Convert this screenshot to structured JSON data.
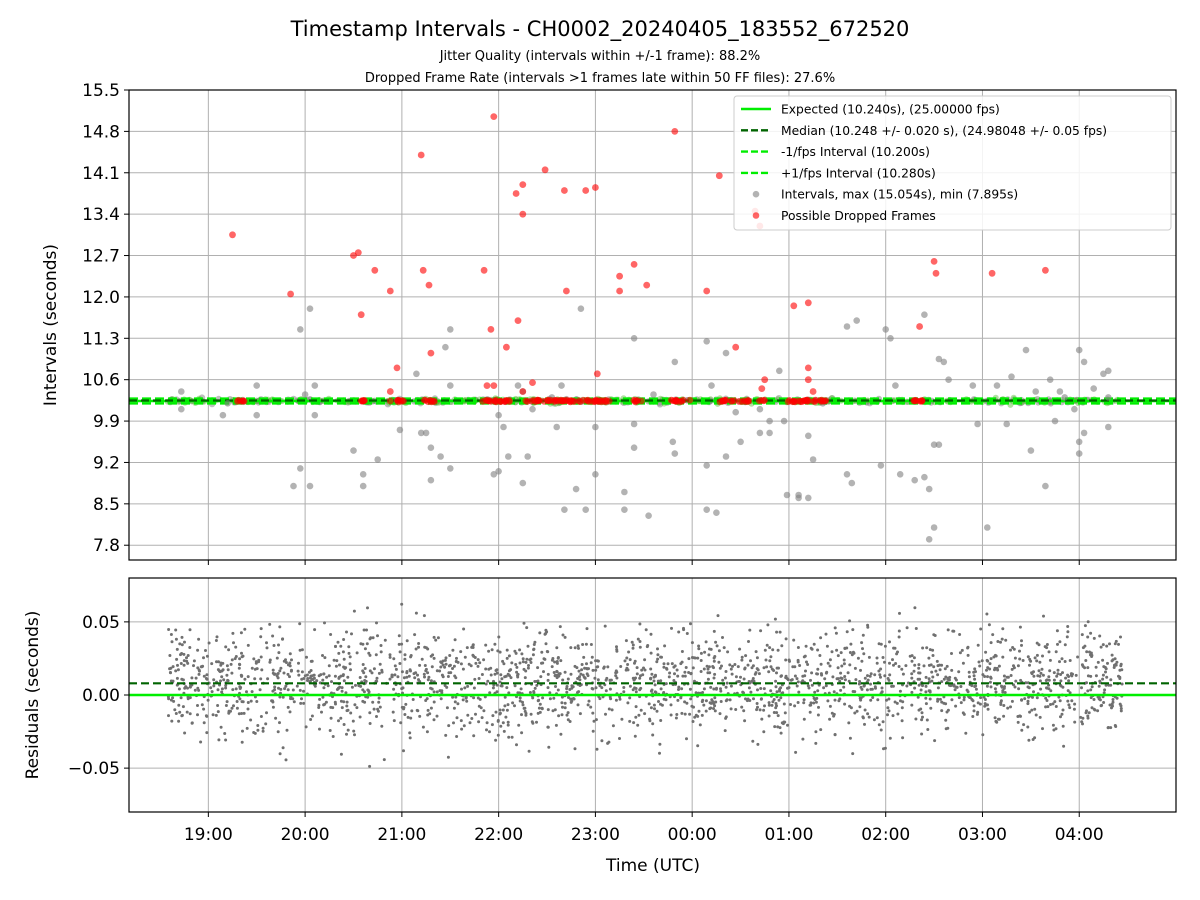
{
  "figure": {
    "title": "Timestamp Intervals - CH0002_20240405_183552_672520",
    "subtitle1": "Jitter Quality (intervals within +/-1 frame): 88.2%",
    "subtitle2": "Dropped Frame Rate (intervals >1 frames late within 50 FF files): 27.6%"
  },
  "chart_data": [
    {
      "type": "scatter",
      "name": "intervals",
      "ylabel": "Intervals (seconds)",
      "ylim": [
        7.55,
        15.5
      ],
      "yticks": [
        7.8,
        8.5,
        9.2,
        9.9,
        10.6,
        11.3,
        12.0,
        12.7,
        13.4,
        14.1,
        14.8,
        15.5
      ],
      "ytick_labels": [
        "7.8",
        "8.5",
        "9.2",
        "9.9",
        "10.6",
        "11.3",
        "12.0",
        "12.7",
        "13.4",
        "14.1",
        "14.8",
        "15.5"
      ],
      "x_unit": "hours since 18:00 UTC",
      "xlim": [
        0.18,
        11.0
      ],
      "grid": true,
      "legend_position": "upper-right",
      "colors": {
        "expected": "#00ee00",
        "median": "#006400",
        "interval": "#00ee00",
        "gray": "#808080",
        "red": "#ff0000"
      },
      "lines": {
        "expected": 10.24,
        "median": 10.248,
        "minus_fps": 10.2,
        "plus_fps": 10.28
      },
      "legend": [
        {
          "label": "Expected (10.240s), (25.00000 fps)",
          "style": "solid",
          "color": "#00ee00"
        },
        {
          "label": "Median (10.248 +/- 0.020 s), (24.98048 +/- 0.05 fps)",
          "style": "dashed",
          "color": "#006400"
        },
        {
          "label": "-1/fps Interval (10.200s)",
          "style": "dashed",
          "color": "#00ee00"
        },
        {
          "label": "+1/fps Interval (10.280s)",
          "style": "dashed",
          "color": "#00ee00"
        },
        {
          "label": "Intervals, max (15.054s), min (7.895s)",
          "style": "marker",
          "color": "#808080"
        },
        {
          "label": "Possible Dropped Frames",
          "style": "marker",
          "color": "#ff0000"
        }
      ],
      "band_x_range": [
        0.58,
        10.45
      ],
      "band_center": 10.24,
      "dropped_clusters": [
        [
          1.3,
          1.4
        ],
        [
          2.55,
          2.65
        ],
        [
          2.88,
          3.02
        ],
        [
          3.22,
          3.35
        ],
        [
          3.8,
          4.12
        ],
        [
          4.28,
          4.45
        ],
        [
          4.45,
          4.65
        ],
        [
          4.65,
          4.88
        ],
        [
          4.9,
          5.05
        ],
        [
          5.02,
          5.15
        ],
        [
          5.38,
          5.48
        ],
        [
          5.78,
          5.98
        ],
        [
          6.28,
          6.45
        ],
        [
          6.48,
          6.6
        ],
        [
          6.68,
          6.75
        ],
        [
          6.98,
          7.25
        ],
        [
          7.25,
          7.4
        ],
        [
          8.28,
          8.42
        ]
      ],
      "outliers_gray": [
        [
          0.72,
          10.4
        ],
        [
          0.72,
          10.1
        ],
        [
          1.15,
          10.0
        ],
        [
          1.2,
          10.2
        ],
        [
          1.5,
          10.5
        ],
        [
          1.5,
          10.0
        ],
        [
          1.88,
          8.8
        ],
        [
          1.95,
          9.1
        ],
        [
          1.95,
          11.45
        ],
        [
          2.0,
          10.35
        ],
        [
          2.05,
          11.8
        ],
        [
          2.05,
          8.8
        ],
        [
          2.1,
          10.5
        ],
        [
          2.1,
          10.0
        ],
        [
          2.5,
          9.4
        ],
        [
          2.6,
          8.8
        ],
        [
          2.6,
          9.0
        ],
        [
          2.75,
          9.25
        ],
        [
          2.95,
          10.25
        ],
        [
          2.98,
          9.75
        ],
        [
          3.15,
          10.7
        ],
        [
          3.2,
          9.7
        ],
        [
          3.25,
          9.7
        ],
        [
          3.3,
          8.9
        ],
        [
          3.3,
          9.45
        ],
        [
          3.4,
          9.3
        ],
        [
          3.5,
          9.1
        ],
        [
          3.5,
          10.5
        ],
        [
          3.5,
          11.45
        ],
        [
          3.45,
          11.15
        ],
        [
          3.95,
          9.0
        ],
        [
          4.0,
          10.0
        ],
        [
          4.0,
          9.05
        ],
        [
          4.05,
          9.8
        ],
        [
          4.1,
          9.3
        ],
        [
          4.2,
          10.5
        ],
        [
          4.25,
          10.4
        ],
        [
          4.25,
          8.85
        ],
        [
          4.3,
          9.3
        ],
        [
          4.35,
          10.1
        ],
        [
          4.55,
          10.3
        ],
        [
          4.6,
          9.8
        ],
        [
          4.65,
          10.5
        ],
        [
          4.68,
          8.4
        ],
        [
          4.85,
          11.8
        ],
        [
          4.8,
          8.75
        ],
        [
          4.9,
          8.4
        ],
        [
          5.0,
          9.0
        ],
        [
          5.0,
          9.8
        ],
        [
          5.3,
          8.7
        ],
        [
          5.3,
          8.4
        ],
        [
          5.4,
          9.45
        ],
        [
          5.4,
          9.85
        ],
        [
          5.4,
          11.3
        ],
        [
          5.55,
          8.3
        ],
        [
          5.6,
          10.35
        ],
        [
          5.8,
          9.55
        ],
        [
          5.82,
          9.35
        ],
        [
          5.82,
          10.9
        ],
        [
          6.15,
          9.15
        ],
        [
          6.15,
          11.25
        ],
        [
          6.15,
          8.4
        ],
        [
          6.25,
          8.35
        ],
        [
          6.2,
          10.5
        ],
        [
          6.35,
          11.05
        ],
        [
          6.35,
          9.3
        ],
        [
          6.45,
          10.05
        ],
        [
          6.5,
          9.55
        ],
        [
          6.7,
          9.7
        ],
        [
          6.7,
          10.1
        ],
        [
          6.8,
          9.9
        ],
        [
          6.8,
          9.7
        ],
        [
          6.9,
          10.75
        ],
        [
          6.95,
          9.9
        ],
        [
          6.98,
          8.65
        ],
        [
          7.1,
          8.6
        ],
        [
          7.1,
          8.65
        ],
        [
          7.2,
          8.6
        ],
        [
          7.2,
          9.65
        ],
        [
          7.25,
          9.25
        ],
        [
          7.35,
          10.2
        ],
        [
          7.6,
          9.0
        ],
        [
          7.65,
          8.85
        ],
        [
          7.6,
          11.5
        ],
        [
          7.7,
          11.6
        ],
        [
          7.95,
          9.15
        ],
        [
          8.0,
          11.45
        ],
        [
          8.05,
          11.3
        ],
        [
          8.1,
          10.5
        ],
        [
          8.15,
          9.0
        ],
        [
          8.3,
          8.9
        ],
        [
          8.4,
          8.95
        ],
        [
          8.4,
          11.7
        ],
        [
          8.45,
          8.75
        ],
        [
          8.5,
          9.5
        ],
        [
          8.55,
          9.5
        ],
        [
          8.55,
          10.95
        ],
        [
          8.6,
          10.9
        ],
        [
          8.65,
          10.6
        ],
        [
          8.45,
          7.9
        ],
        [
          8.5,
          8.1
        ],
        [
          8.9,
          10.5
        ],
        [
          8.95,
          9.85
        ],
        [
          9.05,
          8.1
        ],
        [
          9.15,
          10.5
        ],
        [
          9.25,
          9.85
        ],
        [
          9.3,
          10.65
        ],
        [
          9.45,
          11.1
        ],
        [
          9.5,
          9.4
        ],
        [
          9.55,
          10.4
        ],
        [
          9.65,
          8.8
        ],
        [
          9.7,
          10.6
        ],
        [
          9.75,
          9.9
        ],
        [
          9.8,
          10.4
        ],
        [
          9.85,
          10.3
        ],
        [
          9.95,
          10.1
        ],
        [
          10.0,
          9.55
        ],
        [
          10.0,
          9.35
        ],
        [
          10.0,
          11.1
        ],
        [
          10.05,
          10.9
        ],
        [
          10.05,
          9.7
        ],
        [
          10.15,
          10.45
        ],
        [
          10.25,
          10.7
        ],
        [
          10.3,
          10.3
        ],
        [
          10.3,
          9.8
        ],
        [
          10.3,
          10.75
        ]
      ],
      "outliers_red": [
        [
          1.25,
          13.05
        ],
        [
          1.85,
          12.05
        ],
        [
          2.5,
          12.7
        ],
        [
          2.55,
          12.75
        ],
        [
          2.58,
          11.7
        ],
        [
          2.72,
          12.45
        ],
        [
          2.88,
          12.1
        ],
        [
          2.88,
          10.4
        ],
        [
          2.95,
          10.8
        ],
        [
          3.2,
          14.4
        ],
        [
          3.22,
          12.45
        ],
        [
          3.28,
          12.2
        ],
        [
          3.3,
          11.05
        ],
        [
          3.85,
          12.45
        ],
        [
          3.88,
          10.5
        ],
        [
          3.92,
          11.45
        ],
        [
          3.95,
          15.05
        ],
        [
          3.95,
          10.5
        ],
        [
          4.08,
          11.15
        ],
        [
          4.18,
          13.75
        ],
        [
          4.2,
          11.6
        ],
        [
          4.25,
          13.4
        ],
        [
          4.25,
          13.9
        ],
        [
          4.25,
          10.4
        ],
        [
          4.35,
          10.55
        ],
        [
          4.48,
          14.15
        ],
        [
          4.68,
          13.8
        ],
        [
          4.7,
          12.1
        ],
        [
          4.9,
          13.8
        ],
        [
          5.0,
          13.85
        ],
        [
          5.02,
          10.7
        ],
        [
          5.25,
          12.1
        ],
        [
          5.25,
          12.35
        ],
        [
          5.4,
          12.55
        ],
        [
          5.53,
          12.2
        ],
        [
          5.82,
          14.8
        ],
        [
          6.15,
          12.1
        ],
        [
          6.28,
          14.05
        ],
        [
          6.45,
          11.15
        ],
        [
          6.65,
          13.45
        ],
        [
          6.7,
          13.2
        ],
        [
          6.75,
          10.6
        ],
        [
          6.72,
          10.45
        ],
        [
          7.05,
          11.85
        ],
        [
          7.2,
          11.9
        ],
        [
          7.2,
          10.8
        ],
        [
          7.2,
          10.6
        ],
        [
          7.25,
          10.4
        ],
        [
          8.35,
          11.5
        ],
        [
          8.5,
          12.6
        ],
        [
          8.52,
          12.4
        ],
        [
          9.1,
          12.4
        ],
        [
          9.65,
          12.45
        ]
      ],
      "xticks": [
        1,
        2,
        3,
        4,
        5,
        6,
        7,
        8,
        9,
        10
      ],
      "xtick_labels": [
        "19:00",
        "20:00",
        "21:00",
        "22:00",
        "23:00",
        "00:00",
        "01:00",
        "02:00",
        "03:00",
        "04:00"
      ]
    },
    {
      "type": "scatter",
      "name": "residuals",
      "xlabel": "Time (UTC)",
      "ylabel": "Residuals (seconds)",
      "ylim": [
        -0.08,
        0.08
      ],
      "yticks": [
        -0.05,
        0.0,
        0.05
      ],
      "ytick_labels": [
        "−0.05",
        "0.00",
        "0.05"
      ],
      "xlim": [
        0.18,
        11.0
      ],
      "grid": true,
      "expected_line": 0.0,
      "median_line": 0.008,
      "residual_spread_std": 0.02,
      "points_x_range": [
        0.58,
        10.45
      ],
      "color": "#707070"
    }
  ]
}
